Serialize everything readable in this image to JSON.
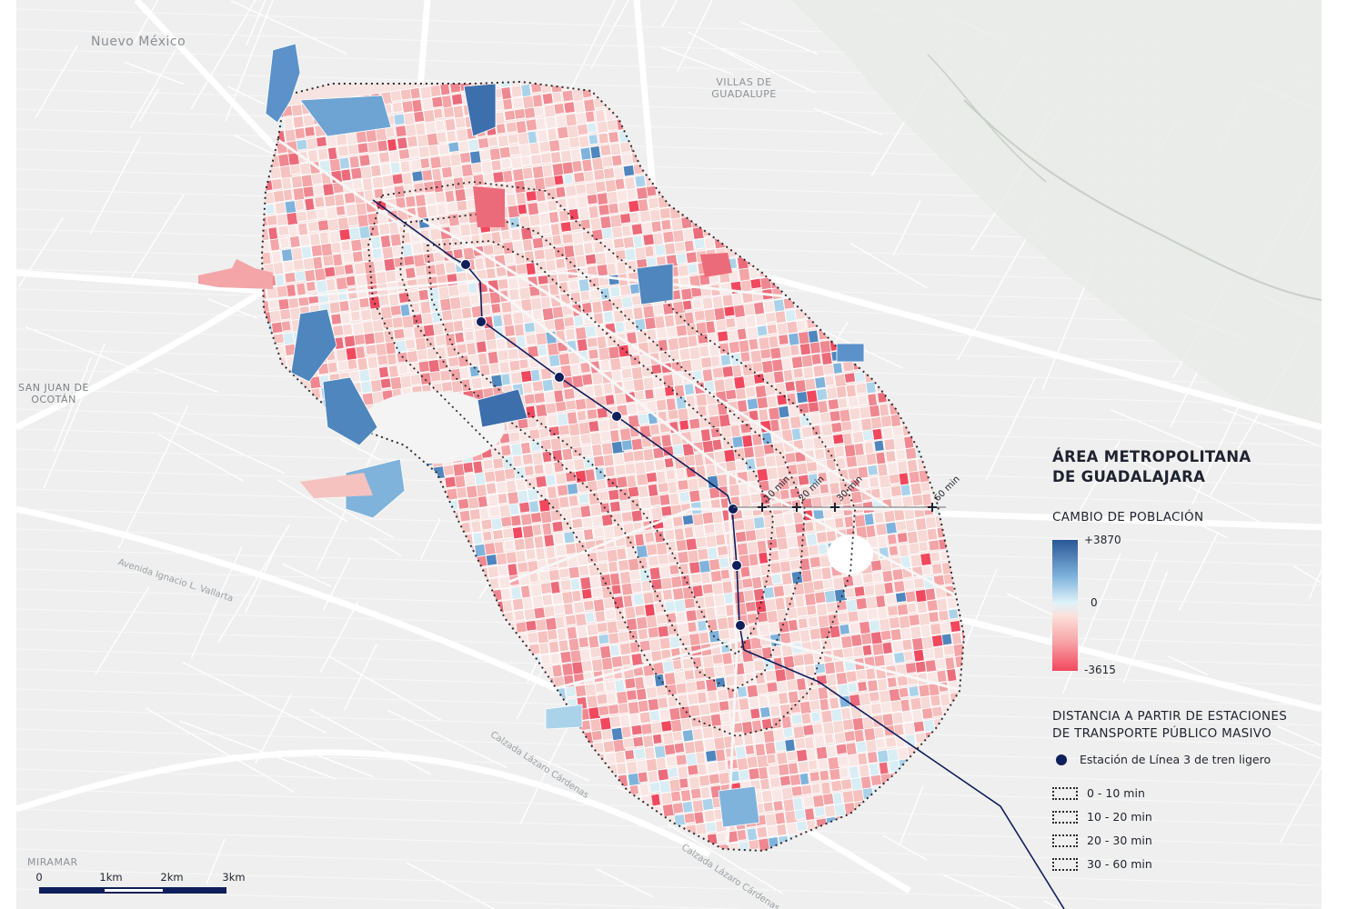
{
  "place_labels": {
    "nuevo_mexico": "Nuevo México",
    "villas_de_guadalupe": "VILLAS DE\nGUADALUPE",
    "san_juan_de_ocotan": "SAN JUAN DE\nOCOTÁN",
    "miramar": "MIRAMAR"
  },
  "road_labels": {
    "avenida_vallarta": "Avenida Ignacio L. Vallarta",
    "calzada_lazaro_1": "Calzada Lázaro Cárdenas",
    "calzada_lazaro_2": "Calzada Lázaro Cárdenas"
  },
  "isochrone_labels": [
    "10 min",
    "20 min",
    "30 min",
    "60 min"
  ],
  "legend": {
    "title": "ÁREA METROPOLITANA\nDE GUADALAJARA",
    "population_title": "CAMBIO DE POBLACIÓN",
    "population_max": "+3870",
    "population_mid": "0",
    "population_min": "-3615",
    "distance_title": "DISTANCIA A PARTIR DE ESTACIONES\nDE TRANSPORTE PÚBLICO MASIVO",
    "station_label": "Estación de Línea 3 de tren ligero",
    "ranges": [
      "0  -  10 min",
      "10  -  20 min",
      "20  -  30 min",
      "30  -  60 min"
    ]
  },
  "scalebar": {
    "labels": [
      "0",
      "1km",
      "2km",
      "3km"
    ]
  },
  "colors": {
    "positive_max": "#2a5796",
    "neutral": "#f4f4f4",
    "negative_max": "#f2485e",
    "rail_line": "#0e1f5b",
    "road": "#ffffff",
    "background": "#f1f1f1"
  },
  "map": {
    "population_change_min": -3615,
    "population_change_max": 3870,
    "station_count": 8
  }
}
